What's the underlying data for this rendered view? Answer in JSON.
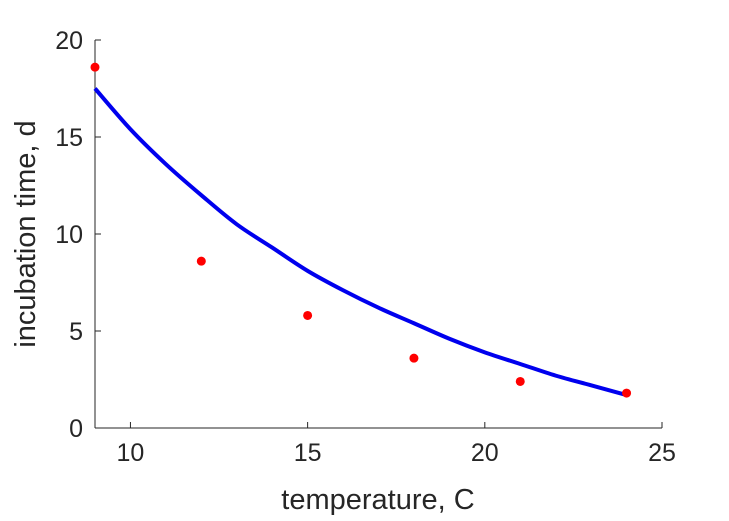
{
  "chart_data": {
    "type": "scatter",
    "xlabel": "temperature, C",
    "ylabel": "incubation time, d",
    "xlim": [
      9,
      25
    ],
    "ylim": [
      0,
      20
    ],
    "xticks": [
      10,
      15,
      20,
      25
    ],
    "yticks": [
      0,
      5,
      10,
      15,
      20
    ],
    "grid": false,
    "series": [
      {
        "kind": "points",
        "color": "#ff0000",
        "x": [
          9,
          12,
          15,
          18,
          21,
          24
        ],
        "y": [
          18.6,
          8.6,
          5.8,
          3.6,
          2.4,
          1.8
        ]
      },
      {
        "kind": "fit-line",
        "color": "#0000ee",
        "x": [
          9,
          10,
          11,
          12,
          13,
          14,
          15,
          16,
          17,
          18,
          19,
          20,
          21,
          22,
          23,
          24
        ],
        "y": [
          17.5,
          15.4,
          13.6,
          12.0,
          10.5,
          9.3,
          8.1,
          7.1,
          6.2,
          5.4,
          4.6,
          3.9,
          3.3,
          2.7,
          2.2,
          1.7
        ]
      }
    ]
  }
}
